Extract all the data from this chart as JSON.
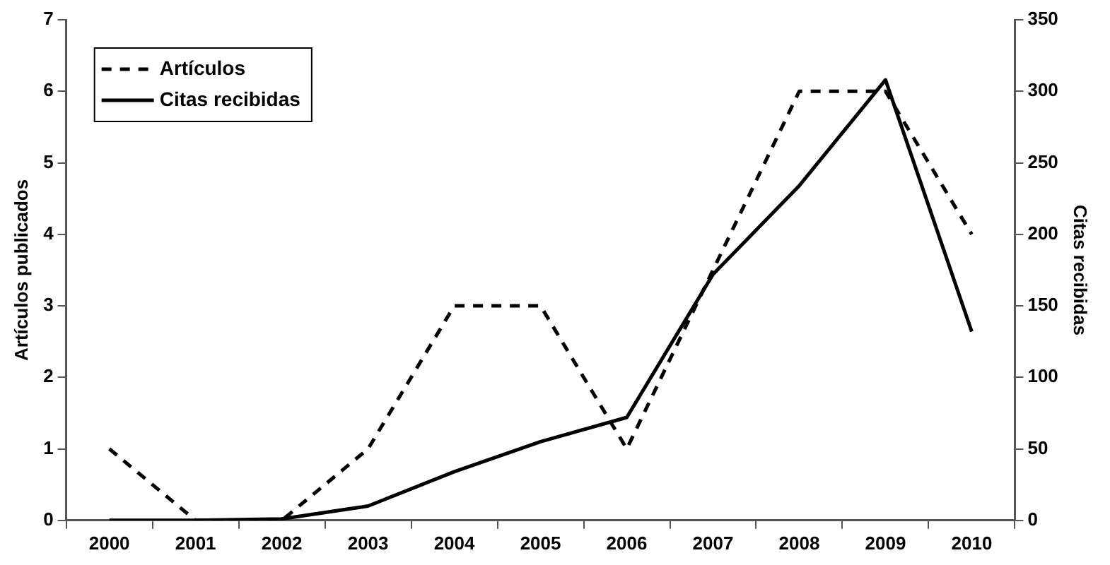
{
  "chart_data": {
    "type": "line",
    "categories": [
      "2000",
      "2001",
      "2002",
      "2003",
      "2004",
      "2005",
      "2006",
      "2007",
      "2008",
      "2009",
      "2010"
    ],
    "ylabel": "Artículos publicados",
    "y2label": "Citas recibidas",
    "ylim": [
      0,
      7
    ],
    "yticks": [
      0,
      1,
      2,
      3,
      4,
      5,
      6,
      7
    ],
    "y2lim": [
      0,
      350
    ],
    "y2ticks": [
      0,
      50,
      100,
      150,
      200,
      250,
      300,
      350
    ],
    "grid": false,
    "legend": "top left",
    "marker": "none",
    "series": [
      {
        "name": "Artículos",
        "color": "#000000",
        "line_style": "dashed",
        "values": [
          1,
          0,
          0,
          1,
          3,
          3,
          1,
          3.5,
          6,
          6,
          4
        ]
      },
      {
        "name": "Citas recibidas",
        "color": "#000000",
        "line_style": "solid",
        "axis": "y2",
        "values": [
          0,
          0,
          1,
          10,
          34,
          55,
          72,
          172,
          234,
          308,
          132
        ]
      }
    ]
  }
}
